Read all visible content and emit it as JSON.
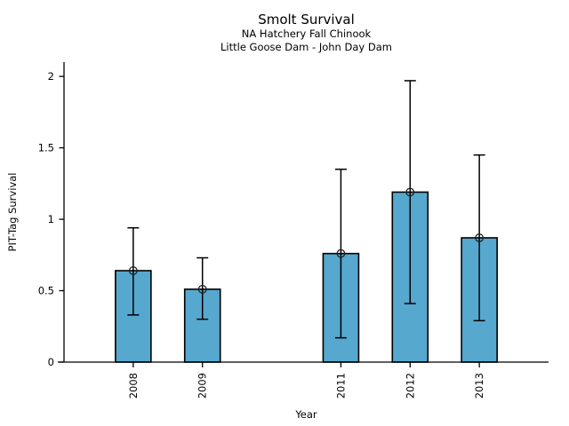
{
  "chart_data": {
    "type": "bar",
    "title": "Smolt Survival",
    "subtitle1": "NA Hatchery Fall Chinook",
    "subtitle2": "Little Goose Dam - John Day Dam",
    "xlabel": "Year",
    "ylabel": "PIT-Tag Survival",
    "categories": [
      "2008",
      "2009",
      "2011",
      "2012",
      "2013"
    ],
    "x": [
      2008,
      2009,
      2011,
      2012,
      2013
    ],
    "values": [
      0.64,
      0.51,
      0.76,
      1.19,
      0.87
    ],
    "error_low": [
      0.33,
      0.3,
      0.17,
      0.41,
      0.29
    ],
    "error_high": [
      0.94,
      0.73,
      1.35,
      1.97,
      1.45
    ],
    "xlim": [
      2007,
      2014
    ],
    "ylim": [
      0,
      2.1
    ],
    "yticks": [
      0,
      0.5,
      1,
      1.5,
      2
    ],
    "ytick_labels": [
      "0",
      "0.5",
      "1",
      "1.5",
      "2"
    ],
    "grid": false,
    "legend": null,
    "marker": "open-circle",
    "colors": {
      "bar_fill": "#56a8ce",
      "bar_edge": "#000000",
      "axis": "#000000",
      "error_bar": "#000000",
      "marker_stroke": "#222222",
      "text": "#000000",
      "background": "#ffffff"
    }
  }
}
